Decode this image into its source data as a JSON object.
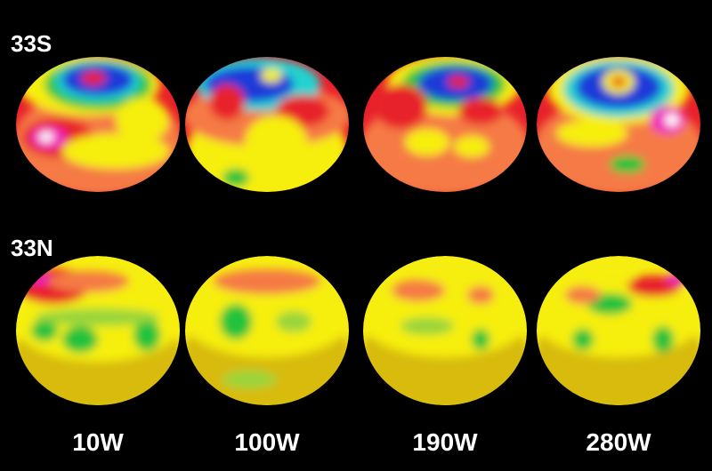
{
  "rows": [
    {
      "label": "33S"
    },
    {
      "label": "33N"
    }
  ],
  "columns": [
    "10W",
    "100W",
    "190W",
    "280W"
  ]
}
